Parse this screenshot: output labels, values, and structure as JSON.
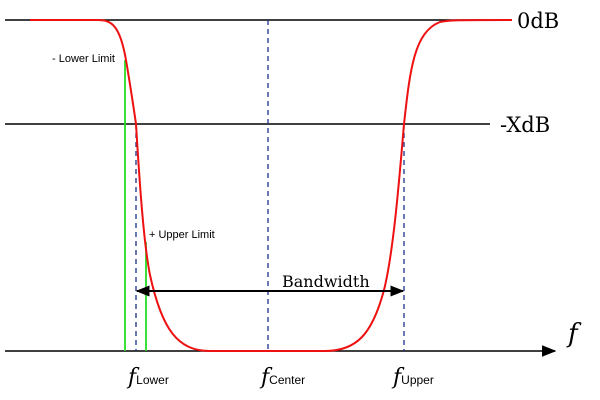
{
  "labels": {
    "zero_db": "0dB",
    "minus_x_db": "-XdB",
    "lower_limit": "- Lower Limit",
    "upper_limit": "+ Upper Limit",
    "bandwidth": "Bandwidth",
    "axis_symbol": "f",
    "f_lower_base": "f",
    "f_lower_sub": "Lower",
    "f_center_base": "f",
    "f_center_sub": "Center",
    "f_upper_base": "f",
    "f_upper_sub": "Upper"
  },
  "colors": {
    "response_curve": "#ee1111",
    "limit_lines": "#22dd22",
    "marker_lines": "#1a2f8a",
    "axis": "#000000"
  }
}
